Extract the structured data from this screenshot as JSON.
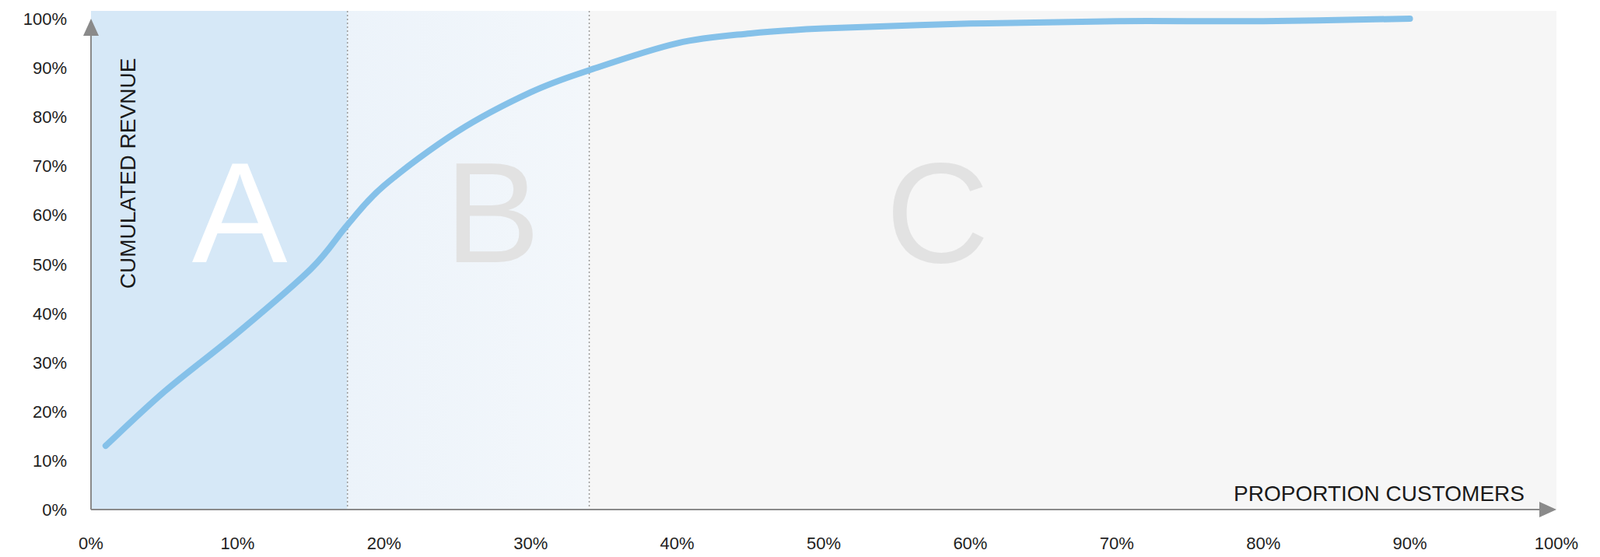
{
  "chart_data": {
    "type": "line",
    "x_label": "PROPORTION CUSTOMERS",
    "y_label": "CUMULATED REVNUE",
    "x": [
      1,
      5,
      10,
      15,
      17.5,
      20,
      25,
      30,
      34,
      40,
      45,
      50,
      60,
      70,
      80,
      90
    ],
    "values": [
      13,
      24,
      36,
      49,
      58,
      66,
      77,
      85,
      89.5,
      95,
      97,
      98,
      99,
      99.5,
      99.5,
      100
    ],
    "color": "#85c1e9",
    "xlim": [
      0,
      100
    ],
    "ylim": [
      0,
      100
    ],
    "xticks": [
      {
        "value": 0,
        "label": "0%"
      },
      {
        "value": 10,
        "label": "10%"
      },
      {
        "value": 20,
        "label": "20%"
      },
      {
        "value": 30,
        "label": "30%"
      },
      {
        "value": 40,
        "label": "40%"
      },
      {
        "value": 50,
        "label": "50%"
      },
      {
        "value": 60,
        "label": "60%"
      },
      {
        "value": 70,
        "label": "70%"
      },
      {
        "value": 80,
        "label": "80%"
      },
      {
        "value": 90,
        "label": "90%"
      },
      {
        "value": 100,
        "label": "100%"
      }
    ],
    "yticks": [
      {
        "value": 0,
        "label": "0%"
      },
      {
        "value": 10,
        "label": "10%"
      },
      {
        "value": 20,
        "label": "20%"
      },
      {
        "value": 30,
        "label": "30%"
      },
      {
        "value": 40,
        "label": "40%"
      },
      {
        "value": 50,
        "label": "50%"
      },
      {
        "value": 60,
        "label": "60%"
      },
      {
        "value": 70,
        "label": "70%"
      },
      {
        "value": 80,
        "label": "80%"
      },
      {
        "value": 90,
        "label": "90%"
      },
      {
        "value": 100,
        "label": "100%"
      }
    ],
    "annotations": [
      {
        "text": "A",
        "x_start": 0,
        "x_end": 17.5
      },
      {
        "text": "B",
        "x_start": 17.5,
        "x_end": 34
      },
      {
        "text": "C",
        "x_start": 34,
        "x_end": 100
      }
    ]
  }
}
